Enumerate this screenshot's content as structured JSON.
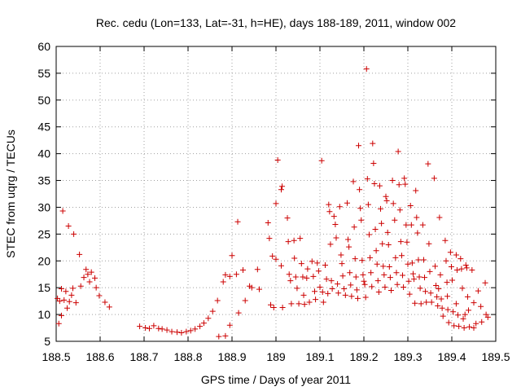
{
  "chart_data": {
    "type": "scatter",
    "title": "Rec. cedu (Lon=133, Lat=-31, h=HE), days 188-189, 2011, window 002",
    "xlabel": "GPS time / Days of year 2011",
    "ylabel": "STEC from uqrg / TECUs",
    "xlim": [
      188.5,
      189.5
    ],
    "ylim": [
      5,
      60
    ],
    "xticks": [
      188.5,
      188.6,
      188.7,
      188.8,
      188.9,
      189,
      189.1,
      189.2,
      189.3,
      189.4,
      189.5
    ],
    "xtick_labels": [
      "188.5",
      "188.6",
      "188.7",
      "188.8",
      "188.9",
      "189",
      "189.1",
      "189.2",
      "189.3",
      "189.4",
      "189.5"
    ],
    "yticks": [
      5,
      10,
      15,
      20,
      25,
      30,
      35,
      40,
      45,
      50,
      55,
      60
    ],
    "ytick_labels": [
      "5",
      "10",
      "15",
      "20",
      "25",
      "30",
      "35",
      "40",
      "45",
      "50",
      "55",
      "60"
    ],
    "grid": true,
    "marker": "+",
    "color": "#cc0000",
    "series": [
      {
        "points": [
          [
            188.503,
            13.0
          ],
          [
            188.508,
            12.5
          ],
          [
            188.506,
            8.3
          ],
          [
            188.512,
            9.8
          ],
          [
            188.515,
            29.3
          ],
          [
            188.512,
            14.8
          ],
          [
            188.518,
            12.7
          ],
          [
            188.522,
            14.3
          ],
          [
            188.525,
            11.2
          ],
          [
            188.528,
            26.5
          ],
          [
            188.53,
            12.4
          ],
          [
            188.535,
            13.6
          ],
          [
            188.538,
            14.9
          ],
          [
            188.54,
            25.0
          ],
          [
            188.545,
            12.2
          ],
          [
            188.553,
            21.2
          ],
          [
            188.556,
            15.3
          ],
          [
            188.563,
            16.9
          ],
          [
            188.568,
            18.4
          ],
          [
            188.572,
            17.5
          ],
          [
            188.576,
            16.1
          ],
          [
            188.58,
            17.9
          ],
          [
            188.588,
            16.8
          ],
          [
            188.591,
            15.0
          ],
          [
            188.598,
            13.5
          ],
          [
            188.611,
            12.3
          ],
          [
            188.621,
            11.4
          ],
          [
            188.69,
            7.8
          ],
          [
            188.703,
            7.5
          ],
          [
            188.712,
            7.4
          ],
          [
            188.722,
            7.9
          ],
          [
            188.733,
            7.4
          ],
          [
            188.741,
            7.3
          ],
          [
            188.752,
            7.1
          ],
          [
            188.763,
            6.8
          ],
          [
            188.775,
            6.7
          ],
          [
            188.785,
            6.6
          ],
          [
            188.796,
            6.8
          ],
          [
            188.806,
            7.0
          ],
          [
            188.816,
            7.3
          ],
          [
            188.827,
            7.8
          ],
          [
            188.836,
            8.4
          ],
          [
            188.846,
            9.3
          ],
          [
            188.856,
            10.6
          ],
          [
            188.867,
            12.6
          ],
          [
            188.87,
            5.9
          ],
          [
            188.885,
            6.0
          ],
          [
            188.88,
            16.1
          ],
          [
            188.885,
            17.4
          ],
          [
            188.895,
            17.1
          ],
          [
            188.9,
            21.0
          ],
          [
            188.895,
            8.0
          ],
          [
            188.91,
            17.5
          ],
          [
            188.915,
            10.3
          ],
          [
            188.913,
            27.3
          ],
          [
            188.925,
            18.3
          ],
          [
            188.93,
            12.6
          ],
          [
            188.94,
            15.3
          ],
          [
            188.945,
            15.0
          ],
          [
            188.958,
            18.4
          ],
          [
            188.962,
            14.7
          ],
          [
            188.982,
            27.1
          ],
          [
            188.985,
            24.2
          ],
          [
            188.992,
            20.9
          ],
          [
            188.988,
            11.8
          ],
          [
            188.995,
            11.3
          ],
          [
            189.0,
            30.7
          ],
          [
            189.004,
            38.8
          ],
          [
            189.0,
            20.3
          ],
          [
            189.012,
            33.3
          ],
          [
            189.014,
            33.9
          ],
          [
            189.012,
            19.1
          ],
          [
            189.015,
            11.3
          ],
          [
            189.026,
            28.0
          ],
          [
            189.028,
            23.6
          ],
          [
            189.03,
            17.5
          ],
          [
            189.033,
            16.3
          ],
          [
            189.035,
            12.0
          ],
          [
            189.041,
            23.8
          ],
          [
            189.042,
            20.5
          ],
          [
            189.045,
            17.0
          ],
          [
            189.048,
            14.9
          ],
          [
            189.052,
            12.0
          ],
          [
            189.055,
            24.2
          ],
          [
            189.058,
            19.5
          ],
          [
            189.061,
            17.0
          ],
          [
            189.063,
            13.6
          ],
          [
            189.065,
            11.9
          ],
          [
            189.07,
            16.8
          ],
          [
            189.072,
            18.5
          ],
          [
            189.076,
            12.3
          ],
          [
            189.082,
            19.9
          ],
          [
            189.085,
            17.1
          ],
          [
            189.088,
            14.3
          ],
          [
            189.09,
            12.8
          ],
          [
            189.094,
            19.6
          ],
          [
            189.097,
            18.1
          ],
          [
            189.1,
            15.1
          ],
          [
            189.104,
            38.7
          ],
          [
            189.106,
            14.2
          ],
          [
            189.108,
            12.3
          ],
          [
            189.112,
            19.2
          ],
          [
            189.115,
            16.6
          ],
          [
            189.118,
            13.9
          ],
          [
            189.12,
            30.5
          ],
          [
            189.122,
            29.2
          ],
          [
            189.124,
            23.1
          ],
          [
            189.126,
            16.3
          ],
          [
            189.128,
            14.8
          ],
          [
            189.132,
            28.3
          ],
          [
            189.135,
            26.8
          ],
          [
            189.137,
            24.3
          ],
          [
            189.14,
            15.7
          ],
          [
            189.142,
            14.0
          ],
          [
            189.145,
            30.1
          ],
          [
            189.148,
            21.1
          ],
          [
            189.15,
            19.5
          ],
          [
            189.152,
            17.2
          ],
          [
            189.155,
            14.8
          ],
          [
            189.158,
            13.6
          ],
          [
            189.162,
            30.8
          ],
          [
            189.164,
            24.0
          ],
          [
            189.166,
            22.6
          ],
          [
            189.168,
            17.8
          ],
          [
            189.17,
            15.5
          ],
          [
            189.172,
            13.4
          ],
          [
            189.176,
            34.8
          ],
          [
            189.178,
            26.3
          ],
          [
            189.18,
            20.4
          ],
          [
            189.182,
            17.0
          ],
          [
            189.184,
            14.6
          ],
          [
            189.186,
            13.0
          ],
          [
            189.188,
            41.5
          ],
          [
            189.19,
            33.3
          ],
          [
            189.192,
            29.8
          ],
          [
            189.194,
            27.6
          ],
          [
            189.196,
            20.1
          ],
          [
            189.198,
            17.4
          ],
          [
            189.2,
            16.2
          ],
          [
            189.202,
            15.6
          ],
          [
            189.204,
            13.2
          ],
          [
            189.206,
            55.8
          ],
          [
            189.208,
            35.3
          ],
          [
            189.21,
            30.5
          ],
          [
            189.212,
            24.9
          ],
          [
            189.214,
            20.6
          ],
          [
            189.216,
            17.8
          ],
          [
            189.218,
            15.2
          ],
          [
            189.22,
            41.9
          ],
          [
            189.222,
            38.2
          ],
          [
            189.224,
            34.4
          ],
          [
            189.226,
            25.9
          ],
          [
            189.228,
            21.9
          ],
          [
            189.23,
            19.4
          ],
          [
            189.232,
            16.3
          ],
          [
            189.234,
            14.2
          ],
          [
            189.236,
            34.0
          ],
          [
            189.238,
            29.7
          ],
          [
            189.24,
            27.0
          ],
          [
            189.242,
            23.2
          ],
          [
            189.244,
            19.0
          ],
          [
            189.246,
            17.4
          ],
          [
            189.248,
            15.1
          ],
          [
            189.25,
            32.0
          ],
          [
            189.252,
            31.2
          ],
          [
            189.254,
            25.3
          ],
          [
            189.256,
            23.0
          ],
          [
            189.258,
            18.9
          ],
          [
            189.26,
            16.9
          ],
          [
            189.262,
            14.5
          ],
          [
            189.265,
            35.0
          ],
          [
            189.267,
            30.7
          ],
          [
            189.27,
            27.6
          ],
          [
            189.272,
            20.6
          ],
          [
            189.274,
            17.8
          ],
          [
            189.276,
            15.6
          ],
          [
            189.278,
            40.4
          ],
          [
            189.28,
            34.2
          ],
          [
            189.282,
            29.5
          ],
          [
            189.284,
            23.6
          ],
          [
            189.286,
            21.0
          ],
          [
            189.288,
            17.3
          ],
          [
            189.29,
            15.1
          ],
          [
            189.292,
            35.4
          ],
          [
            189.294,
            34.3
          ],
          [
            189.296,
            26.7
          ],
          [
            189.298,
            23.5
          ],
          [
            189.3,
            19.4
          ],
          [
            189.302,
            16.2
          ],
          [
            189.304,
            13.8
          ],
          [
            189.306,
            30.3
          ],
          [
            189.308,
            26.7
          ],
          [
            189.31,
            19.6
          ],
          [
            189.312,
            17.6
          ],
          [
            189.314,
            16.6
          ],
          [
            189.316,
            12.1
          ],
          [
            189.318,
            33.1
          ],
          [
            189.32,
            28.1
          ],
          [
            189.322,
            25.2
          ],
          [
            189.324,
            20.2
          ],
          [
            189.326,
            17.0
          ],
          [
            189.328,
            14.9
          ],
          [
            189.33,
            12.0
          ],
          [
            189.334,
            26.7
          ],
          [
            189.336,
            20.2
          ],
          [
            189.338,
            16.9
          ],
          [
            189.34,
            14.3
          ],
          [
            189.342,
            12.3
          ],
          [
            189.346,
            38.1
          ],
          [
            189.348,
            23.2
          ],
          [
            189.35,
            18.0
          ],
          [
            189.352,
            14.0
          ],
          [
            189.354,
            12.3
          ],
          [
            189.36,
            35.4
          ],
          [
            189.362,
            19.0
          ],
          [
            189.364,
            15.4
          ],
          [
            189.366,
            13.3
          ],
          [
            189.368,
            11.6
          ],
          [
            189.372,
            28.1
          ],
          [
            189.374,
            17.4
          ],
          [
            189.376,
            12.9
          ],
          [
            189.378,
            11.2
          ],
          [
            189.38,
            9.7
          ],
          [
            189.385,
            23.8
          ],
          [
            189.387,
            20.0
          ],
          [
            189.389,
            16.0
          ],
          [
            189.391,
            10.9
          ],
          [
            189.393,
            8.5
          ],
          [
            189.397,
            21.6
          ],
          [
            189.399,
            18.9
          ],
          [
            189.401,
            16.4
          ],
          [
            189.403,
            10.5
          ],
          [
            189.405,
            7.9
          ],
          [
            189.41,
            21.1
          ],
          [
            189.412,
            18.3
          ],
          [
            189.414,
            9.9
          ],
          [
            189.416,
            7.8
          ],
          [
            189.42,
            20.4
          ],
          [
            189.422,
            18.5
          ],
          [
            189.424,
            14.9
          ],
          [
            189.426,
            9.2
          ],
          [
            189.428,
            7.5
          ],
          [
            189.432,
            19.2
          ],
          [
            189.434,
            18.7
          ],
          [
            189.436,
            13.3
          ],
          [
            189.438,
            10.8
          ],
          [
            189.44,
            7.7
          ],
          [
            189.446,
            18.3
          ],
          [
            189.45,
            12.2
          ],
          [
            189.455,
            8.3
          ],
          [
            189.46,
            14.4
          ],
          [
            189.466,
            11.5
          ],
          [
            189.468,
            8.6
          ],
          [
            189.476,
            15.9
          ],
          [
            189.478,
            10.0
          ],
          [
            189.482,
            9.5
          ],
          [
            189.45,
            7.5
          ],
          [
            189.43,
            10.0
          ],
          [
            189.41,
            12.0
          ],
          [
            189.39,
            13.4
          ],
          [
            189.37,
            14.8
          ]
        ]
      }
    ]
  }
}
